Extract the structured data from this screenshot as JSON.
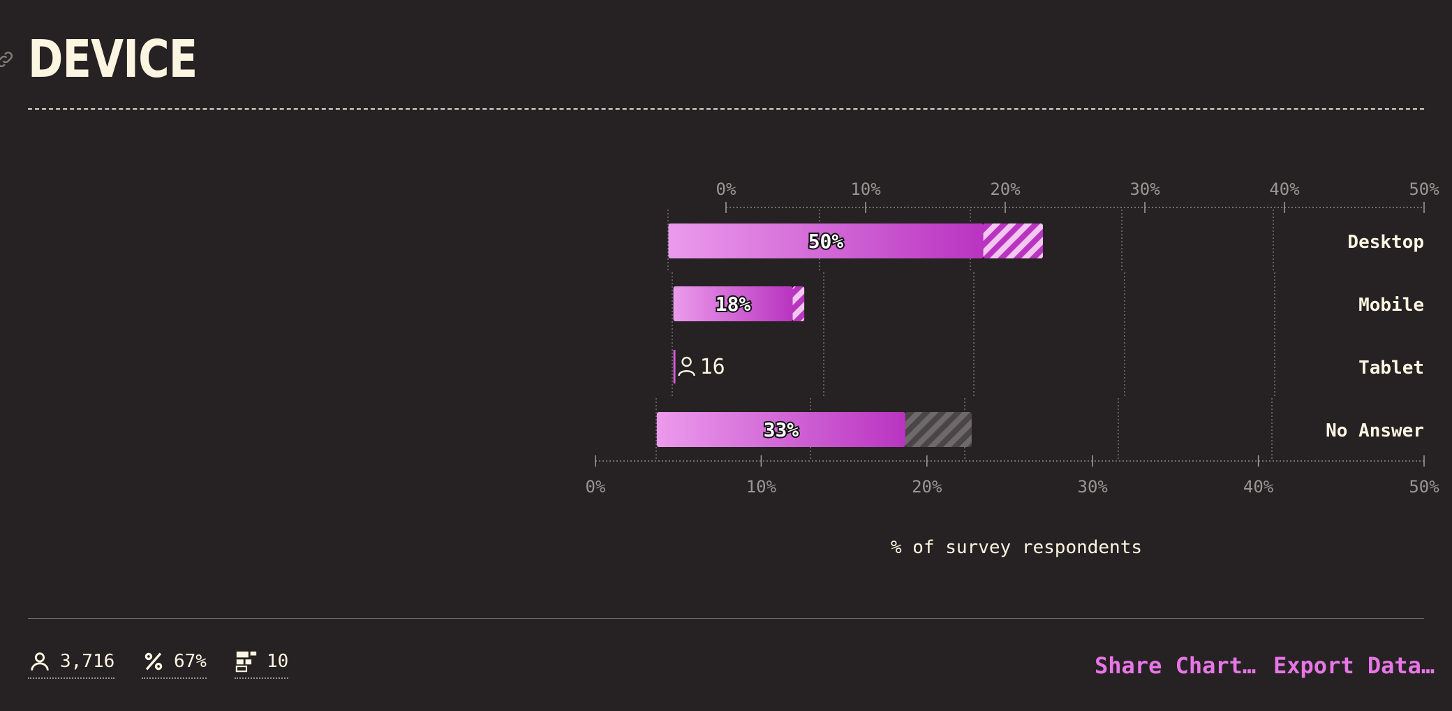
{
  "header": {
    "title": "DEVICE"
  },
  "chart_data": {
    "type": "bar",
    "orientation": "horizontal",
    "xlabel": "% of survey respondents",
    "xlim": [
      0,
      50
    ],
    "ticks": [
      "0%",
      "10%",
      "20%",
      "30%",
      "40%",
      "50%"
    ],
    "categories": [
      "Desktop",
      "Mobile",
      "Tablet",
      "No Answer"
    ],
    "series": [
      {
        "values": [
          50,
          18,
          0.4,
          33
        ],
        "labels": [
          "50%",
          "18%",
          "",
          "33%"
        ],
        "bar_start": [
          4.4,
          4.7,
          4.7,
          3.7
        ],
        "solid_end": [
          23.4,
          11.9,
          4.8,
          18.7
        ],
        "hatched_end": [
          27,
          12.6,
          4.8,
          22.7
        ],
        "hatch_color": [
          "#e78be9",
          "#e78be9",
          "#e78be9",
          "#6b6568"
        ]
      }
    ],
    "tablet_count": "16",
    "gradient": [
      "#eb9bec",
      "#b934c1"
    ],
    "grid": true
  },
  "footer": {
    "respondents": "3,716",
    "percent": "67%",
    "count": "10",
    "share_label": "Share Chart…",
    "export_label": "Export Data…"
  }
}
